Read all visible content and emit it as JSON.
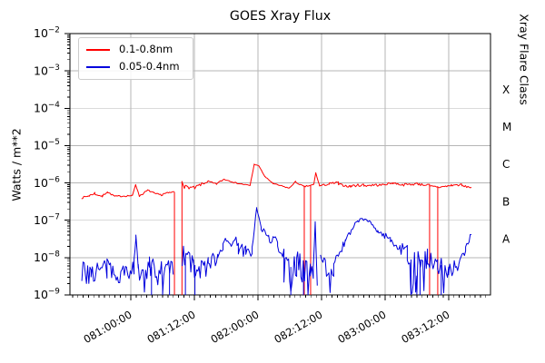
{
  "title": "GOES Xray Flux",
  "axes": {
    "ylabel": "Watts / m**2",
    "right_label": "Xray Flare Class",
    "y_tick_exponents": [
      -2,
      -3,
      -4,
      -5,
      -6,
      -7,
      -8,
      -9
    ],
    "x_ticks": [
      {
        "t": 24,
        "label": "081:00:00"
      },
      {
        "t": 36,
        "label": "081:12:00"
      },
      {
        "t": 48,
        "label": "082:00:00"
      },
      {
        "t": 60,
        "label": "082:12:00"
      },
      {
        "t": 72,
        "label": "083:00:00"
      },
      {
        "t": 84,
        "label": "083:12:00"
      }
    ],
    "xlim_hours": [
      12.5,
      91.9
    ],
    "x_minor_step_hours": 1,
    "ylim_log10": [
      -9,
      -2
    ],
    "grid": true,
    "flare_classes": [
      {
        "label": "X",
        "log_mid": -3.5
      },
      {
        "label": "M",
        "log_mid": -4.5
      },
      {
        "label": "C",
        "log_mid": -5.5
      },
      {
        "label": "B",
        "log_mid": -6.5
      },
      {
        "label": "A",
        "log_mid": -7.5
      }
    ]
  },
  "legend": {
    "position": "upper-left",
    "entries": [
      {
        "label": "0.1-0.8nm",
        "color": "#ff0000"
      },
      {
        "label": "0.05-0.4nm",
        "color": "#0000dd"
      }
    ]
  },
  "colors": {
    "grid": "#b6b6b6",
    "spine": "#000000",
    "background": "#ffffff",
    "red_series": "#ff0000",
    "blue_series": "#0000dd"
  },
  "chart_data": {
    "type": "line",
    "title": "GOES Xray Flux",
    "xlabel_unit": "hours since day 080 00:00 UTC; tick labels are day:HH:MM",
    "ylabel": "Watts / m**2",
    "yscale": "log10",
    "ylim": [
      -9,
      -2
    ],
    "xlim": [
      12.5,
      91.9
    ],
    "legend_position": "upper left",
    "seed": 7,
    "segment_format": "[t_start_h, t_end_h, log10flux_start, log10flux_end, noise_decades, dropout_probability]",
    "series": [
      {
        "name": "0.1-0.8nm",
        "color": "#ff0000",
        "runs": [
          [
            [
              14.7,
              16.2,
              -6.4,
              -6.34,
              0.025,
              0
            ],
            [
              16.2,
              17.2,
              -6.34,
              -6.27,
              0.03,
              0
            ],
            [
              17.2,
              18.6,
              -6.3,
              -6.36,
              0.02,
              0
            ],
            [
              18.6,
              19.6,
              -6.36,
              -6.22,
              0.03,
              0
            ],
            [
              19.6,
              21.0,
              -6.25,
              -6.36,
              0.02,
              0
            ],
            [
              21.0,
              24.3,
              -6.36,
              -6.34,
              0.02,
              0
            ],
            [
              24.3,
              24.9,
              -6.34,
              -6.04,
              0.015,
              0
            ],
            [
              24.9,
              25.6,
              -6.04,
              -6.35,
              0.015,
              0
            ],
            [
              25.6,
              27.2,
              -6.35,
              -6.2,
              0.025,
              0
            ],
            [
              27.2,
              28.3,
              -6.2,
              -6.26,
              0.02,
              0
            ],
            [
              28.3,
              30.0,
              -6.28,
              -6.33,
              0.02,
              0
            ],
            [
              30.0,
              32.2,
              -6.3,
              -6.24,
              0.025,
              0
            ]
          ],
          [
            [
              33.65,
              34.1,
              -5.95,
              -6.12,
              0.03,
              0
            ],
            [
              34.1,
              36.3,
              -6.1,
              -6.14,
              0.045,
              0
            ],
            [
              36.3,
              37.6,
              -6.1,
              -6.02,
              0.04,
              0
            ],
            [
              37.6,
              38.6,
              -6.02,
              -5.96,
              0.03,
              0
            ],
            [
              38.6,
              40.2,
              -5.96,
              -6.04,
              0.025,
              0
            ],
            [
              40.2,
              41.6,
              -6.02,
              -5.9,
              0.02,
              0
            ],
            [
              41.6,
              43.4,
              -5.9,
              -5.98,
              0.015,
              0
            ],
            [
              43.4,
              46.5,
              -5.99,
              -6.07,
              0.015,
              0
            ],
            [
              46.5,
              47.3,
              -6.07,
              -5.5,
              0.01,
              0
            ],
            [
              47.3,
              48.2,
              -5.5,
              -5.55,
              0.008,
              0
            ],
            [
              48.2,
              49.3,
              -5.55,
              -5.83,
              0.008,
              0
            ],
            [
              49.3,
              50.9,
              -5.83,
              -6.02,
              0.01,
              0
            ],
            [
              50.9,
              53.9,
              -6.02,
              -6.14,
              0.015,
              0
            ],
            [
              53.9,
              55.1,
              -6.14,
              -5.96,
              0.015,
              0
            ],
            [
              55.1,
              56.7,
              -5.98,
              -6.1,
              0.015,
              0
            ],
            [
              56.7,
              57.9,
              -6.1,
              -6.07,
              0.02,
              0
            ],
            [
              57.9,
              58.55,
              -6.07,
              -6.04,
              0.015,
              0
            ],
            [
              58.55,
              58.9,
              -6.04,
              -5.73,
              0.01,
              0
            ],
            [
              58.9,
              59.6,
              -5.73,
              -6.06,
              0.01,
              0
            ],
            [
              59.6,
              61.5,
              -6.08,
              -6.03,
              0.025,
              0
            ],
            [
              61.5,
              63.2,
              -6.02,
              -5.99,
              0.03,
              0
            ],
            [
              63.2,
              65.5,
              -6.04,
              -6.1,
              0.03,
              0
            ],
            [
              65.5,
              68.0,
              -6.08,
              -6.05,
              0.035,
              0
            ],
            [
              68.0,
              71.0,
              -6.07,
              -6.05,
              0.035,
              0
            ],
            [
              71.0,
              73.5,
              -6.06,
              -6.0,
              0.025,
              0
            ],
            [
              73.5,
              75.5,
              -6.0,
              -6.06,
              0.025,
              0
            ],
            [
              75.5,
              78.5,
              -6.05,
              -6.02,
              0.035,
              0
            ],
            [
              78.5,
              80.4,
              -6.04,
              -6.06,
              0.03,
              0
            ],
            [
              80.4,
              81.9,
              -6.09,
              -6.1,
              0.025,
              0
            ],
            [
              81.9,
              84.5,
              -6.12,
              -6.07,
              0.025,
              0
            ],
            [
              84.5,
              86.5,
              -6.06,
              -6.05,
              0.03,
              0
            ],
            [
              86.5,
              88.3,
              -6.08,
              -6.12,
              0.025,
              0
            ]
          ]
        ],
        "drops": [
          [
            32.23,
            -6.24
          ],
          [
            33.65,
            -5.95
          ],
          [
            56.74,
            -6.08
          ],
          [
            57.94,
            -6.07
          ],
          [
            80.4,
            -6.05
          ],
          [
            81.94,
            -6.09
          ]
        ]
      },
      {
        "name": "0.05-0.4nm",
        "color": "#0000dd",
        "runs": [
          [
            [
              14.75,
              16.5,
              -8.45,
              -8.35,
              0.32,
              0.02
            ],
            [
              16.5,
              19.5,
              -8.38,
              -8.32,
              0.33,
              0.03
            ],
            [
              19.5,
              23.2,
              -8.33,
              -8.4,
              0.3,
              0.02
            ],
            [
              23.2,
              24.6,
              -8.35,
              -8.25,
              0.28,
              0
            ],
            [
              24.6,
              24.95,
              -8.0,
              -7.45,
              0.1,
              0
            ],
            [
              24.95,
              25.4,
              -7.5,
              -8.3,
              0.12,
              0
            ],
            [
              25.4,
              27.5,
              -8.32,
              -8.28,
              0.3,
              0.03
            ],
            [
              27.5,
              30.0,
              -8.35,
              -8.42,
              0.38,
              0.09
            ],
            [
              30.0,
              32.0,
              -8.4,
              -8.45,
              0.4,
              0.12
            ]
          ],
          [
            [
              33.7,
              35.8,
              -8.05,
              -8.15,
              0.4,
              0.06
            ],
            [
              35.8,
              38.6,
              -8.32,
              -8.28,
              0.3,
              0.06
            ],
            [
              38.6,
              40.4,
              -8.2,
              -7.95,
              0.22,
              0
            ],
            [
              40.4,
              41.4,
              -7.9,
              -7.65,
              0.18,
              0
            ],
            [
              41.4,
              44.3,
              -7.62,
              -7.55,
              0.14,
              0
            ],
            [
              44.3,
              45.7,
              -7.75,
              -7.85,
              0.18,
              0
            ],
            [
              45.7,
              46.9,
              -7.9,
              -7.82,
              0.14,
              0
            ],
            [
              46.9,
              47.75,
              -7.75,
              -6.68,
              0.06,
              0
            ],
            [
              47.75,
              48.6,
              -6.68,
              -7.2,
              0.05,
              0
            ],
            [
              48.6,
              50.0,
              -7.22,
              -7.45,
              0.08,
              0
            ],
            [
              50.0,
              51.7,
              -7.48,
              -7.58,
              0.12,
              0
            ],
            [
              51.7,
              52.9,
              -7.62,
              -7.95,
              0.2,
              0.02
            ],
            [
              52.9,
              55.3,
              -8.3,
              -8.35,
              0.42,
              0.13
            ],
            [
              55.3,
              56.1,
              -8.05,
              -8.15,
              0.25,
              0.02
            ],
            [
              56.1,
              57.9,
              -8.3,
              -8.45,
              0.38,
              0.1
            ],
            [
              57.9,
              58.45,
              -8.5,
              -8.3,
              0.3,
              0.1
            ],
            [
              58.45,
              58.8,
              -8.2,
              -7.05,
              0.08,
              0
            ],
            [
              58.8,
              59.2,
              -7.05,
              -8.7,
              0.1,
              0
            ]
          ],
          [
            [
              59.8,
              62.3,
              -8.25,
              -8.2,
              0.33,
              0.05
            ],
            [
              62.3,
              64.5,
              -8.1,
              -7.6,
              0.14,
              0
            ],
            [
              64.5,
              66.8,
              -7.55,
              -7.05,
              0.09,
              0
            ],
            [
              66.8,
              68.6,
              -7.0,
              -6.97,
              0.05,
              0
            ],
            [
              68.6,
              70.6,
              -7.0,
              -7.28,
              0.06,
              0
            ],
            [
              70.6,
              73.0,
              -7.3,
              -7.5,
              0.08,
              0
            ],
            [
              73.0,
              74.8,
              -7.55,
              -7.72,
              0.13,
              0
            ],
            [
              74.8,
              76.2,
              -7.75,
              -7.85,
              0.18,
              0.02
            ],
            [
              76.2,
              78.0,
              -8.15,
              -8.3,
              0.45,
              0.17
            ],
            [
              78.0,
              80.0,
              -8.25,
              -8.1,
              0.4,
              0.12
            ],
            [
              80.0,
              81.9,
              -8.15,
              -8.25,
              0.35,
              0.06
            ],
            [
              81.9,
              84.0,
              -8.3,
              -8.28,
              0.3,
              0.05
            ],
            [
              84.0,
              85.9,
              -8.3,
              -8.25,
              0.25,
              0.02
            ],
            [
              85.9,
              87.2,
              -8.2,
              -7.8,
              0.1,
              0
            ],
            [
              87.2,
              88.3,
              -7.75,
              -7.35,
              0.08,
              0
            ]
          ]
        ],
        "drops": [
          [
            27.9,
            -8.25
          ],
          [
            31.3,
            -8.3
          ],
          [
            34.3,
            -8.05
          ],
          [
            36.1,
            -8.2
          ],
          [
            54.2,
            -8.25
          ],
          [
            56.6,
            -8.3
          ],
          [
            76.9,
            -8.05
          ],
          [
            78.6,
            -8.05
          ],
          [
            82.6,
            -8.2
          ]
        ]
      }
    ]
  }
}
